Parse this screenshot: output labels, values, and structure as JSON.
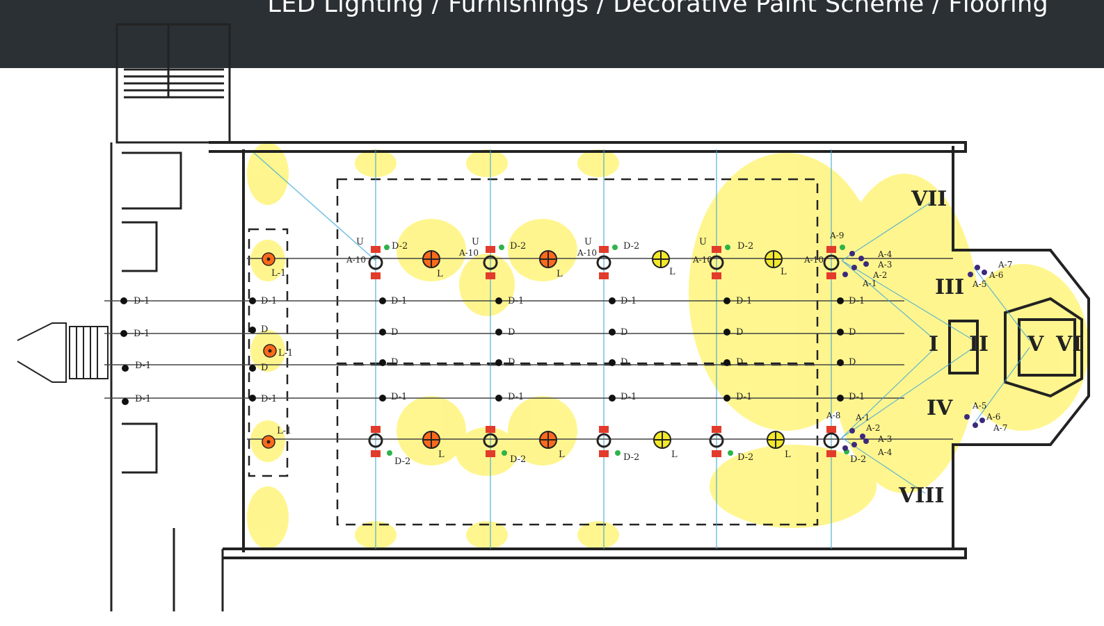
{
  "header": {
    "title": "LED Lighting / Furnishings / Decorative Paint Scheme / Flooring"
  },
  "plan": {
    "fixture_labels": {
      "uplight": "U",
      "downlight_1": "D-1",
      "downlight_2": "D-2",
      "downlight": "D",
      "lantern": "L",
      "lantern_1": "L-1"
    },
    "zones": [
      "I",
      "II",
      "III",
      "IV",
      "V",
      "VI",
      "VII",
      "VIII"
    ],
    "upper_accents": [
      "A-9",
      "A-4",
      "A-3",
      "A-2",
      "A-1"
    ],
    "lower_accents": [
      "A-8",
      "A-1",
      "A-2",
      "A-3",
      "A-4"
    ],
    "apse_accents_upper": [
      "A-7",
      "A-6",
      "A-5"
    ],
    "apse_accents_lower": [
      "A-5",
      "A-6",
      "A-7"
    ],
    "bay_accents": [
      "A-10",
      "A-10",
      "A-10",
      "A-10",
      "A-10"
    ],
    "colors": {
      "header_bg": "#2b3035",
      "light_wash": "#ffee33",
      "lantern_orange": "#ff6a1a",
      "lantern_yellow": "#f3e92a",
      "fixture_red": "#e23b2b",
      "blue_beam": "#3aa6d8",
      "green_dot": "#2db34a",
      "wall_line": "#222222"
    }
  }
}
